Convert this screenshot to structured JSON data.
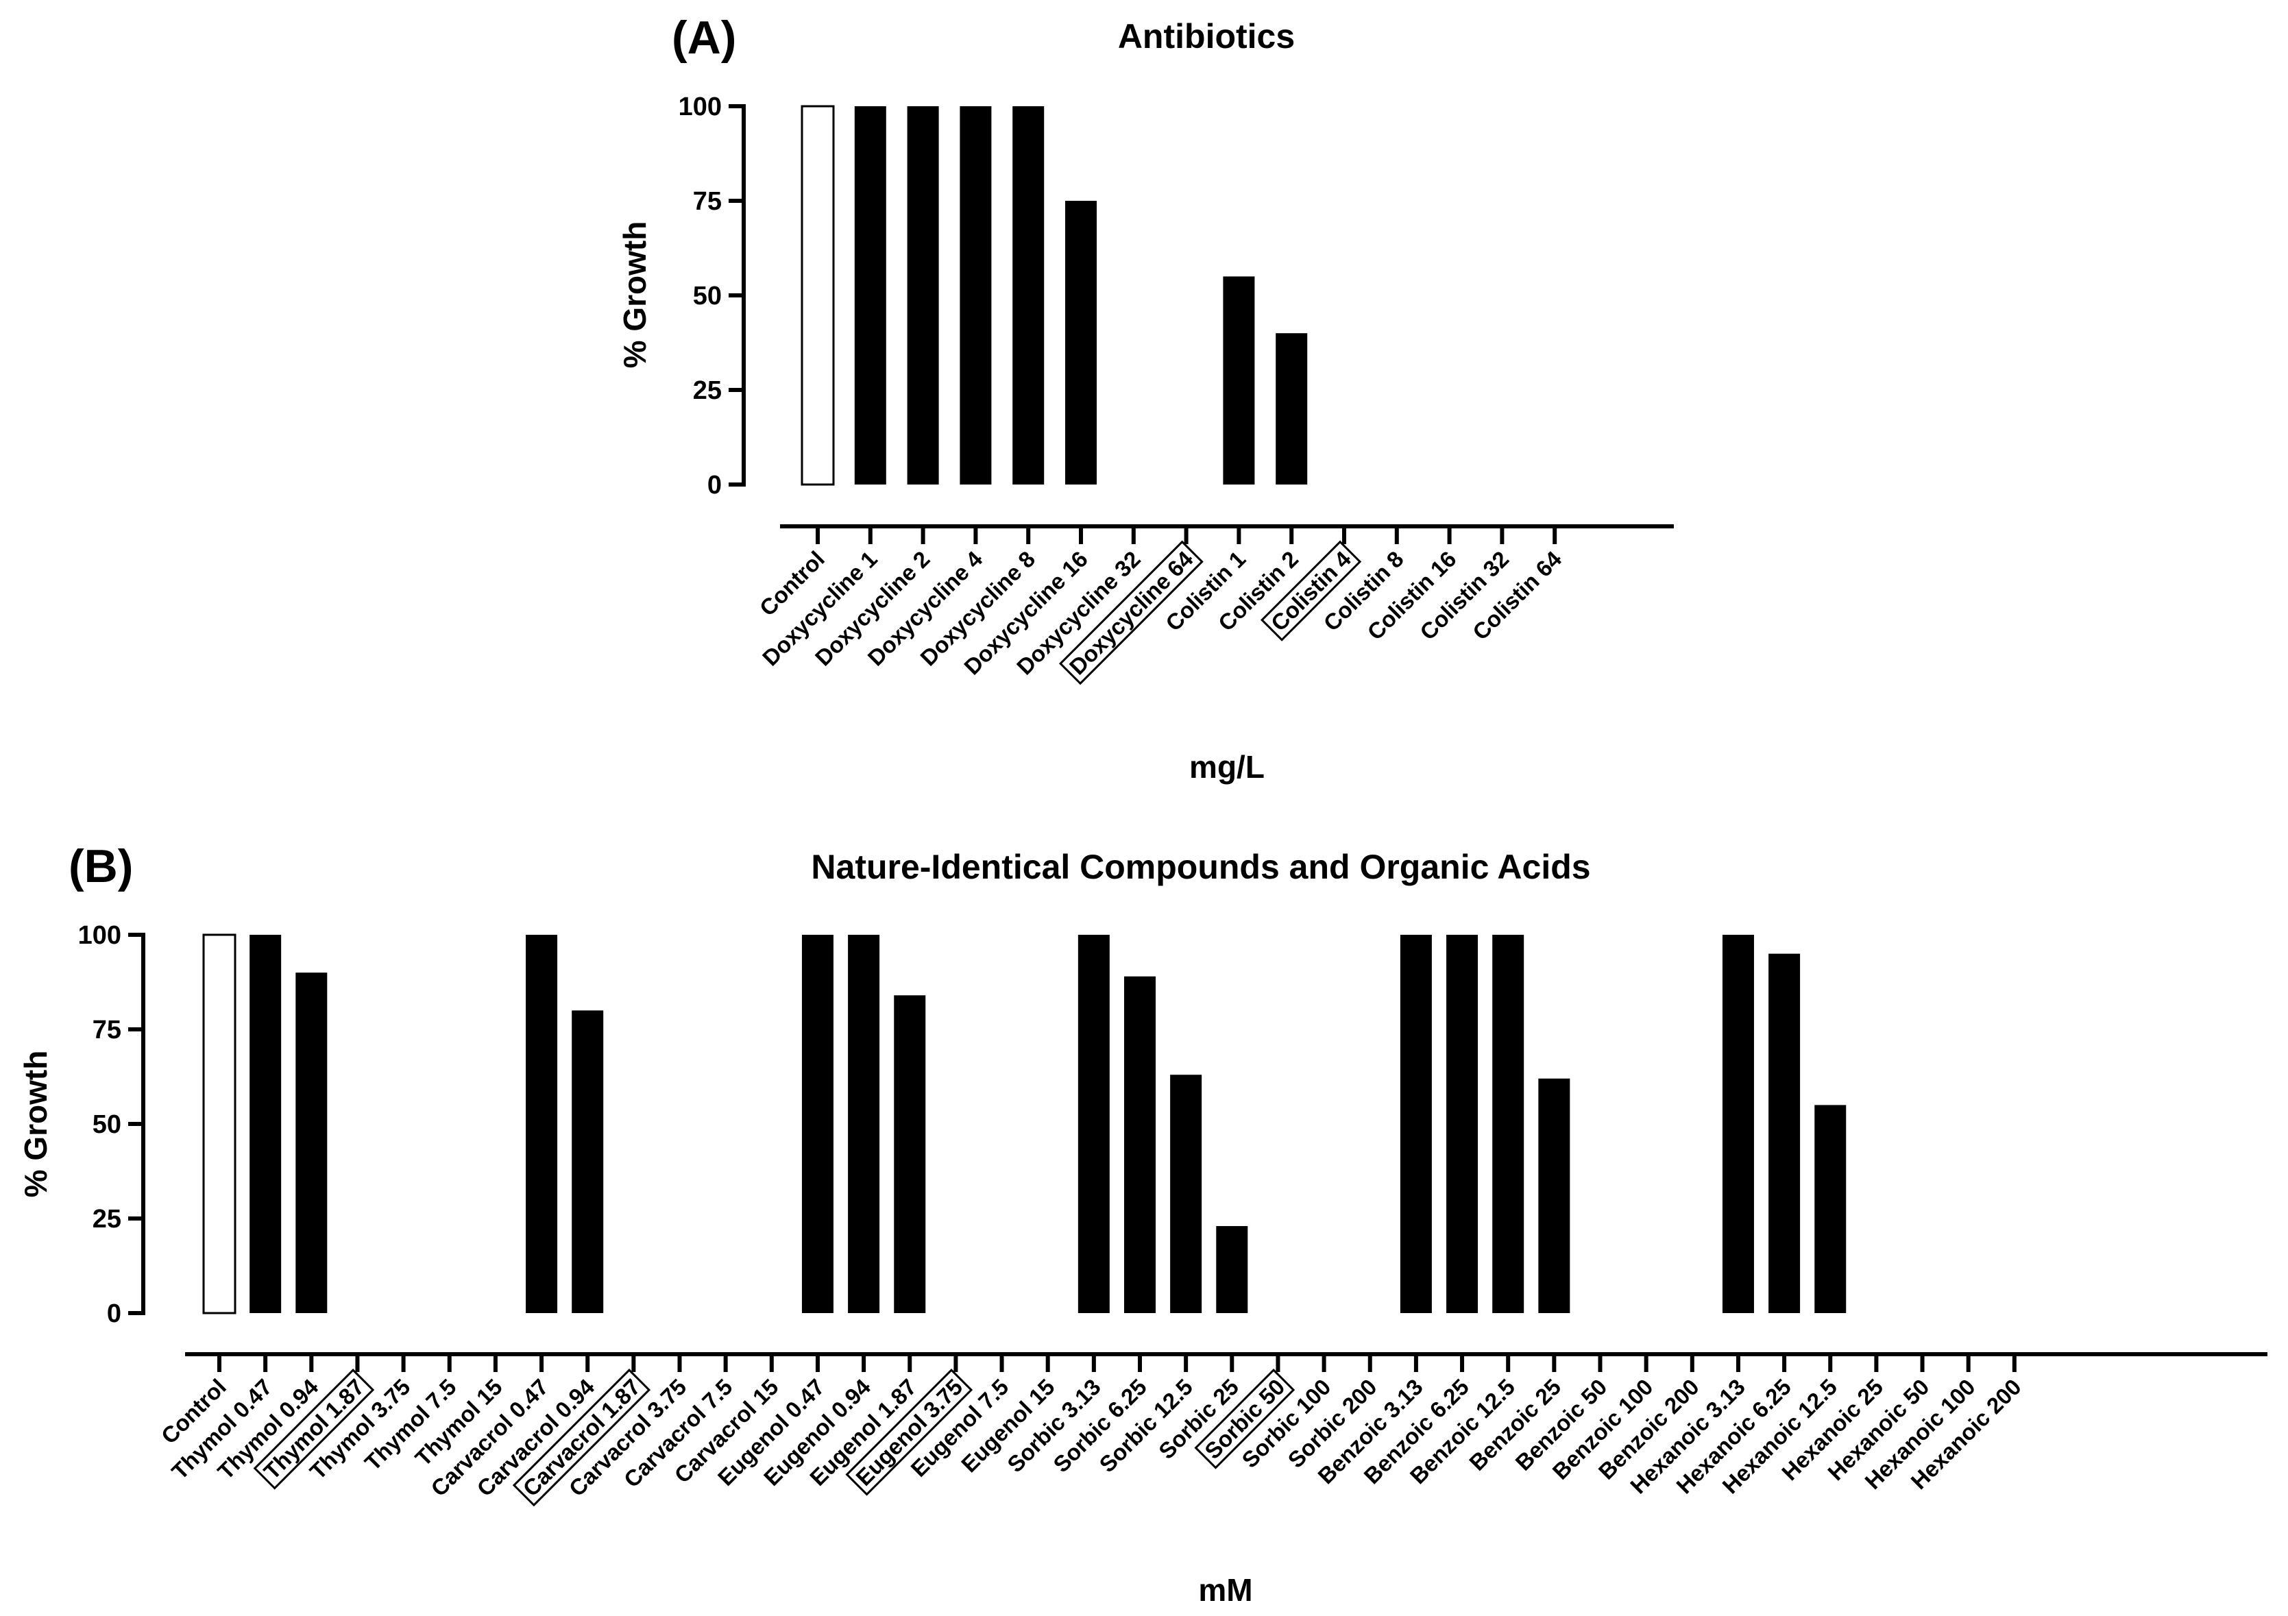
{
  "chart_data": [
    {
      "type": "bar",
      "panel_label": "(A)",
      "title": "Antibiotics",
      "xlabel": "mg/L",
      "ylabel": "% Growth",
      "ylim": [
        0,
        100
      ],
      "yticks": [
        0,
        25,
        50,
        75,
        100
      ],
      "grid": false,
      "categories": [
        "Control",
        "Doxycycline 1",
        "Doxycycline 2",
        "Doxycycline 4",
        "Doxycycline 8",
        "Doxycycline 16",
        "Doxycycline 32",
        "Doxycycline 64",
        "Colistin 1",
        "Colistin 2",
        "Colistin 4",
        "Colistin 8",
        "Colistin 16",
        "Colistin 32",
        "Colistin 64"
      ],
      "values": [
        100,
        100,
        100,
        100,
        100,
        75,
        0,
        0,
        55,
        40,
        0,
        0,
        0,
        0,
        0
      ],
      "styles": [
        "open",
        "filled",
        "filled",
        "filled",
        "filled",
        "filled",
        "filled",
        "filled",
        "filled",
        "filled",
        "filled",
        "filled",
        "filled",
        "filled",
        "filled"
      ],
      "boxed_labels": [
        "Doxycycline 64",
        "Colistin 4"
      ]
    },
    {
      "type": "bar",
      "panel_label": "(B)",
      "title": "Nature-Identical Compounds and Organic Acids",
      "xlabel": "mM",
      "ylabel": "% Growth",
      "ylim": [
        0,
        100
      ],
      "yticks": [
        0,
        25,
        50,
        75,
        100
      ],
      "grid": false,
      "categories": [
        "Control",
        "Thymol 0.47",
        "Thymol 0.94",
        "Thymol 1.87",
        "Thymol 3.75",
        "Thymol 7.5",
        "Thymol 15",
        "Carvacrol 0.47",
        "Carvacrol 0.94",
        "Carvacrol 1.87",
        "Carvacrol 3.75",
        "Carvacrol 7.5",
        "Carvacrol 15",
        "Eugenol 0.47",
        "Eugenol 0.94",
        "Eugenol 1.87",
        "Eugenol 3.75",
        "Eugenol 7.5",
        "Eugenol 15",
        "Sorbic 3.13",
        "Sorbic 6.25",
        "Sorbic 12.5",
        "Sorbic 25",
        "Sorbic 50",
        "Sorbic 100",
        "Sorbic 200",
        "Benzoic 3.13",
        "Benzoic 6.25",
        "Benzoic 12.5",
        "Benzoic 25",
        "Benzoic 50",
        "Benzoic 100",
        "Benzoic 200",
        "Hexanoic 3.13",
        "Hexanoic 6.25",
        "Hexanoic 12.5",
        "Hexanoic 25",
        "Hexanoic 50",
        "Hexanoic 100",
        "Hexanoic 200"
      ],
      "values": [
        100,
        100,
        90,
        0,
        0,
        0,
        0,
        100,
        80,
        0,
        0,
        0,
        0,
        100,
        100,
        84,
        0,
        0,
        0,
        100,
        89,
        63,
        23,
        0,
        0,
        0,
        100,
        100,
        100,
        62,
        0,
        0,
        0,
        100,
        95,
        55,
        0,
        0,
        0,
        0
      ],
      "styles": [
        "open",
        "filled",
        "filled",
        "filled",
        "filled",
        "filled",
        "filled",
        "filled",
        "filled",
        "filled",
        "filled",
        "filled",
        "filled",
        "filled",
        "filled",
        "filled",
        "filled",
        "filled",
        "filled",
        "filled",
        "filled",
        "filled",
        "filled",
        "filled",
        "filled",
        "filled",
        "filled",
        "filled",
        "filled",
        "filled",
        "filled",
        "filled",
        "filled",
        "filled",
        "filled",
        "filled",
        "filled",
        "filled",
        "filled",
        "filled"
      ],
      "boxed_labels": [
        "Thymol 1.87",
        "Carvacrol 1.87",
        "Eugenol 3.75",
        "Sorbic 50"
      ]
    }
  ]
}
